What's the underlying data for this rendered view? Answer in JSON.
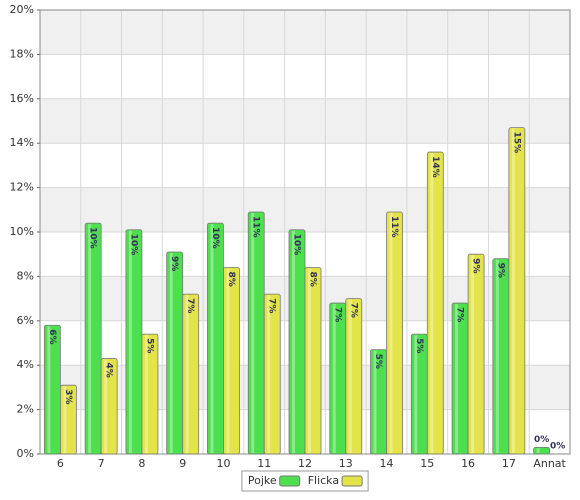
{
  "chart_data": {
    "type": "bar",
    "categories": [
      "6",
      "7",
      "8",
      "9",
      "10",
      "11",
      "12",
      "13",
      "14",
      "15",
      "16",
      "17",
      "Annat"
    ],
    "series": [
      {
        "name": "Pojke",
        "color": "#4ddf4d",
        "values": [
          5.8,
          10.4,
          10.1,
          9.1,
          10.4,
          10.9,
          10.1,
          6.8,
          4.7,
          5.4,
          6.8,
          8.8,
          0.3
        ],
        "value_labels": [
          "6%",
          "10%",
          "10%",
          "9%",
          "10%",
          "11%",
          "10%",
          "7%",
          "5%",
          "5%",
          "7%",
          "9%",
          "0%"
        ]
      },
      {
        "name": "Flicka",
        "color": "#e3e34a",
        "values": [
          3.1,
          4.3,
          5.4,
          7.2,
          8.4,
          7.2,
          8.4,
          7.0,
          10.9,
          13.6,
          9.0,
          14.7,
          0
        ],
        "value_labels": [
          "3%",
          "4%",
          "5%",
          "7%",
          "8%",
          "7%",
          "8%",
          "7%",
          "11%",
          "14%",
          "9%",
          "15%",
          "0%"
        ]
      }
    ],
    "ylim": [
      0,
      20
    ],
    "yticks": [
      {
        "value": 0,
        "label": "0%"
      },
      {
        "value": 2,
        "label": "2%"
      },
      {
        "value": 4,
        "label": "4%"
      },
      {
        "value": 6,
        "label": "6%"
      },
      {
        "value": 8,
        "label": "8%"
      },
      {
        "value": 10,
        "label": "10%"
      },
      {
        "value": 12,
        "label": "12%"
      },
      {
        "value": 14,
        "label": "14%"
      },
      {
        "value": 16,
        "label": "16%"
      },
      {
        "value": 18,
        "label": "18%"
      },
      {
        "value": 20,
        "label": "20%"
      }
    ],
    "grid": true,
    "legend": "bottom"
  }
}
